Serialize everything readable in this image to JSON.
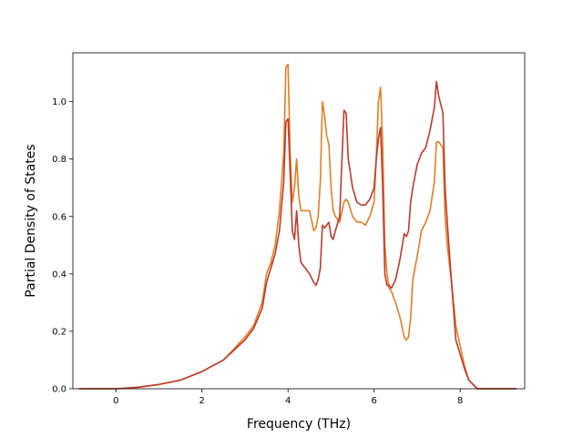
{
  "chart_data": {
    "type": "line",
    "title": "",
    "xlabel": "Frequency (THz)",
    "ylabel": "Partial Density of States",
    "xlim": [
      -1.0,
      9.5
    ],
    "ylim": [
      0.0,
      1.17
    ],
    "x_ticks": [
      0,
      2,
      4,
      6,
      8
    ],
    "x_tick_labels": [
      "0",
      "2",
      "4",
      "6",
      "8"
    ],
    "y_ticks": [
      0.0,
      0.2,
      0.4,
      0.6,
      0.8,
      1.0
    ],
    "y_tick_labels": [
      "0.0",
      "0.2",
      "0.4",
      "0.6",
      "0.8",
      "1.0"
    ],
    "grid": false,
    "legend": "none",
    "series": [
      {
        "color": "#e67e22",
        "x": [
          -0.85,
          0.0,
          0.5,
          1.0,
          1.5,
          2.0,
          2.5,
          3.0,
          3.2,
          3.4,
          3.5,
          3.6,
          3.7,
          3.8,
          3.9,
          3.95,
          4.0,
          4.05,
          4.1,
          4.15,
          4.2,
          4.25,
          4.3,
          4.4,
          4.5,
          4.6,
          4.65,
          4.7,
          4.75,
          4.8,
          4.85,
          4.9,
          4.95,
          5.0,
          5.05,
          5.1,
          5.2,
          5.3,
          5.35,
          5.4,
          5.5,
          5.6,
          5.7,
          5.8,
          5.9,
          6.0,
          6.05,
          6.1,
          6.15,
          6.2,
          6.25,
          6.3,
          6.35,
          6.4,
          6.5,
          6.6,
          6.7,
          6.75,
          6.8,
          6.85,
          6.9,
          7.0,
          7.1,
          7.2,
          7.3,
          7.4,
          7.45,
          7.5,
          7.6,
          7.65,
          7.7,
          7.8,
          7.9,
          8.0,
          8.1,
          8.2,
          8.4,
          9.3
        ],
        "y": [
          0.0,
          0.0,
          0.005,
          0.015,
          0.03,
          0.06,
          0.1,
          0.18,
          0.22,
          0.3,
          0.4,
          0.44,
          0.5,
          0.62,
          0.82,
          1.12,
          1.13,
          0.82,
          0.65,
          0.7,
          0.8,
          0.67,
          0.62,
          0.62,
          0.62,
          0.55,
          0.56,
          0.6,
          0.72,
          1.0,
          0.95,
          0.88,
          0.85,
          0.7,
          0.62,
          0.6,
          0.58,
          0.65,
          0.66,
          0.65,
          0.6,
          0.58,
          0.58,
          0.57,
          0.6,
          0.65,
          0.8,
          1.0,
          1.05,
          0.85,
          0.5,
          0.4,
          0.35,
          0.34,
          0.3,
          0.25,
          0.18,
          0.17,
          0.18,
          0.25,
          0.38,
          0.46,
          0.55,
          0.58,
          0.62,
          0.72,
          0.86,
          0.86,
          0.84,
          0.6,
          0.5,
          0.37,
          0.22,
          0.15,
          0.08,
          0.03,
          0.0,
          0.0
        ]
      },
      {
        "color": "#c0392b",
        "x": [
          -0.85,
          0.0,
          0.5,
          1.0,
          1.5,
          2.0,
          2.5,
          3.0,
          3.2,
          3.4,
          3.5,
          3.6,
          3.7,
          3.8,
          3.9,
          3.95,
          4.0,
          4.05,
          4.1,
          4.15,
          4.2,
          4.25,
          4.3,
          4.4,
          4.5,
          4.6,
          4.65,
          4.7,
          4.75,
          4.8,
          4.85,
          4.9,
          4.95,
          5.0,
          5.05,
          5.1,
          5.2,
          5.3,
          5.35,
          5.4,
          5.5,
          5.6,
          5.7,
          5.8,
          5.9,
          6.0,
          6.05,
          6.1,
          6.15,
          6.2,
          6.25,
          6.3,
          6.35,
          6.4,
          6.5,
          6.6,
          6.7,
          6.75,
          6.8,
          6.85,
          6.9,
          7.0,
          7.1,
          7.2,
          7.3,
          7.4,
          7.45,
          7.5,
          7.6,
          7.65,
          7.7,
          7.8,
          7.9,
          8.0,
          8.1,
          8.2,
          8.4,
          9.3
        ],
        "y": [
          0.0,
          0.0,
          0.005,
          0.015,
          0.03,
          0.06,
          0.1,
          0.17,
          0.21,
          0.28,
          0.37,
          0.42,
          0.47,
          0.55,
          0.72,
          0.93,
          0.94,
          0.75,
          0.55,
          0.52,
          0.62,
          0.5,
          0.44,
          0.42,
          0.4,
          0.37,
          0.36,
          0.38,
          0.42,
          0.57,
          0.56,
          0.57,
          0.58,
          0.53,
          0.52,
          0.55,
          0.6,
          0.97,
          0.96,
          0.8,
          0.7,
          0.65,
          0.64,
          0.64,
          0.66,
          0.7,
          0.8,
          0.87,
          0.91,
          0.7,
          0.4,
          0.36,
          0.36,
          0.35,
          0.38,
          0.45,
          0.54,
          0.53,
          0.55,
          0.65,
          0.7,
          0.78,
          0.82,
          0.84,
          0.9,
          0.98,
          1.07,
          1.02,
          0.96,
          0.7,
          0.58,
          0.37,
          0.17,
          0.12,
          0.07,
          0.03,
          0.0,
          0.0
        ]
      }
    ]
  }
}
